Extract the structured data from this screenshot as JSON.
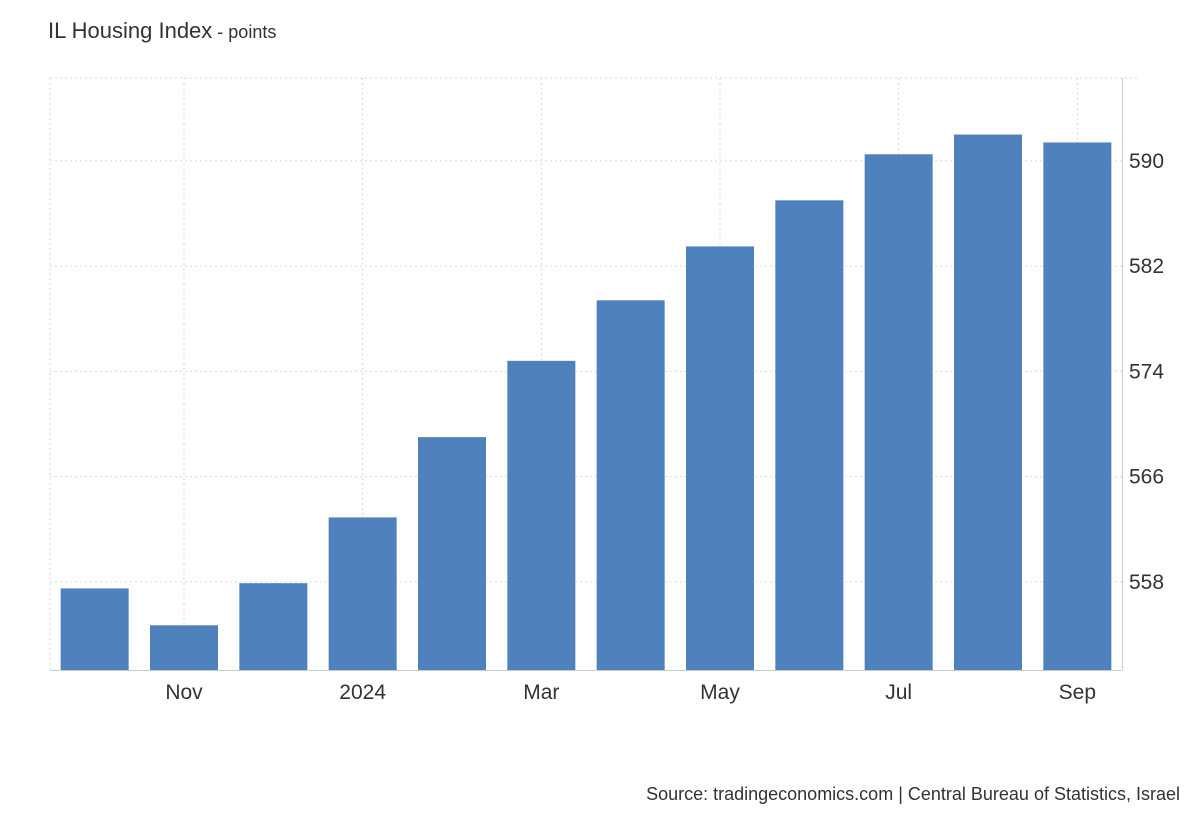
{
  "title": "IL Housing Index",
  "unit": "points",
  "source": "Source: tradingeconomics.com | Central Bureau of Statistics, Israel",
  "colors": {
    "bar": "#4f81bd",
    "grid": "#d9d9d9",
    "axis": "#cccccc",
    "text": "#333333"
  },
  "chart_data": {
    "type": "bar",
    "title": "IL Housing Index",
    "unit": "points",
    "categories": [
      "2023-10",
      "2023-11",
      "2023-12",
      "2024-01",
      "2024-02",
      "2024-03",
      "2024-04",
      "2024-05",
      "2024-06",
      "2024-07",
      "2024-08",
      "2024-09"
    ],
    "values": [
      557.5,
      554.7,
      557.9,
      562.9,
      569.0,
      574.8,
      579.4,
      583.5,
      587.0,
      590.5,
      592.0,
      591.4
    ],
    "x_tick_labels": [
      {
        "category": "2023-11",
        "label": "Nov"
      },
      {
        "category": "2024-01",
        "label": "2024"
      },
      {
        "category": "2024-03",
        "label": "Mar"
      },
      {
        "category": "2024-05",
        "label": "May"
      },
      {
        "category": "2024-07",
        "label": "Jul"
      },
      {
        "category": "2024-09",
        "label": "Sep"
      }
    ],
    "y_ticks": [
      558,
      566,
      574,
      582,
      590
    ],
    "ylim": [
      551.3,
      596.3
    ],
    "y_axis_position": "right",
    "grid": true,
    "legend": "none"
  }
}
